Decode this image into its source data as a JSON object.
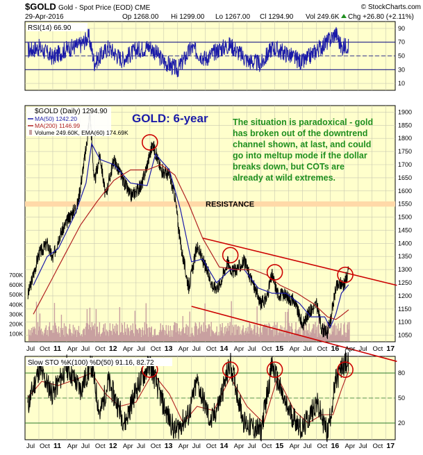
{
  "header": {
    "symbol": "$GOLD",
    "name": "Gold - Spot Price (EOD) CME",
    "source": "© StockCharts.com",
    "date": "29-Apr-2016",
    "op": "Op 1268.00",
    "hi": "Hi 1299.00",
    "lo": "Lo 1267.00",
    "cl": "Cl 1294.90",
    "vol": "Vol 249.6K",
    "chg": "Chg +26.80 (+2.11%)",
    "chg_arrow": "triangle-up-icon"
  },
  "colors": {
    "panel_bg": "#ffffcc",
    "price": "#000000",
    "rsi": "#1a1aa8",
    "ma50": "#1a1aa8",
    "ma200": "#b02020",
    "volume": "#c8a0a0",
    "annotation": "#cc0000",
    "resistance_band": "#ffd9a8",
    "title_text": "#1a1aa8",
    "note_text": "#1f8f1f"
  },
  "x_axis": {
    "labels": [
      {
        "t": 2010.75,
        "text": "Oct",
        "bold": false
      },
      {
        "t": 2011.0,
        "text": "11",
        "bold": true
      },
      {
        "t": 2011.25,
        "text": "Apr",
        "bold": false
      },
      {
        "t": 2011.5,
        "text": "Jul",
        "bold": false
      },
      {
        "t": 2011.75,
        "text": "Oct",
        "bold": false
      },
      {
        "t": 2012.0,
        "text": "12",
        "bold": true
      },
      {
        "t": 2012.25,
        "text": "Apr",
        "bold": false
      },
      {
        "t": 2012.5,
        "text": "Jul",
        "bold": false
      },
      {
        "t": 2012.75,
        "text": "Oct",
        "bold": false
      },
      {
        "t": 2013.0,
        "text": "13",
        "bold": true
      },
      {
        "t": 2013.25,
        "text": "Apr",
        "bold": false
      },
      {
        "t": 2013.5,
        "text": "Jul",
        "bold": false
      },
      {
        "t": 2013.75,
        "text": "Oct",
        "bold": false
      },
      {
        "t": 2014.0,
        "text": "14",
        "bold": true
      },
      {
        "t": 2014.25,
        "text": "Apr",
        "bold": false
      },
      {
        "t": 2014.5,
        "text": "Jul",
        "bold": false
      },
      {
        "t": 2014.75,
        "text": "Oct",
        "bold": false
      },
      {
        "t": 2015.0,
        "text": "15",
        "bold": true
      },
      {
        "t": 2015.25,
        "text": "Apr",
        "bold": false
      },
      {
        "t": 2015.5,
        "text": "Jul",
        "bold": false
      },
      {
        "t": 2015.75,
        "text": "Oct",
        "bold": false
      },
      {
        "t": 2016.0,
        "text": "16",
        "bold": true
      },
      {
        "t": 2016.25,
        "text": "Apr",
        "bold": false
      },
      {
        "t": 2016.5,
        "text": "Jul",
        "bold": false
      },
      {
        "t": 2016.75,
        "text": "Oct",
        "bold": false
      },
      {
        "t": 2017.0,
        "text": "17",
        "bold": true
      }
    ],
    "first_label": "Jul"
  },
  "chart_data": [
    {
      "type": "line",
      "panel": "rsi",
      "legend": "RSI(14) 66.90",
      "ylim": [
        0,
        100
      ],
      "yticks": [
        90,
        70,
        50,
        30,
        10
      ],
      "reference_lines": [
        70,
        30
      ],
      "midline": 50,
      "series": [
        {
          "name": "RSI(14)",
          "x": [
            2010.55,
            2010.75,
            2011.0,
            2011.25,
            2011.5,
            2011.65,
            2011.75,
            2012.0,
            2012.25,
            2012.5,
            2012.75,
            2013.0,
            2013.25,
            2013.5,
            2013.75,
            2014.0,
            2014.2,
            2014.5,
            2014.75,
            2014.95,
            2015.25,
            2015.5,
            2015.75,
            2016.0,
            2016.1,
            2016.2,
            2016.33
          ],
          "y": [
            58,
            62,
            48,
            60,
            66,
            78,
            40,
            62,
            45,
            58,
            64,
            42,
            30,
            62,
            46,
            60,
            66,
            44,
            38,
            62,
            52,
            40,
            58,
            74,
            84,
            62,
            66.9
          ]
        }
      ]
    },
    {
      "type": "line",
      "panel": "price",
      "title": "GOLD: 6-year",
      "legend": [
        "$GOLD (Daily) 1294.90",
        "MA(50) 1242.20",
        "MA(200) 1146.99",
        "Volume 249.60K, EMA(60) 174.69K"
      ],
      "ylim": [
        1025,
        1925
      ],
      "yticks": [
        1900,
        1850,
        1800,
        1750,
        1700,
        1650,
        1600,
        1550,
        1500,
        1450,
        1400,
        1350,
        1300,
        1250,
        1200,
        1150,
        1100,
        1050
      ],
      "volume_ticks": [
        "700K",
        "600K",
        "500K",
        "400K",
        "300K",
        "200K",
        "100K"
      ],
      "series": [
        {
          "name": "$GOLD (Daily)",
          "x": [
            2010.55,
            2010.75,
            2010.9,
            2011.0,
            2011.1,
            2011.3,
            2011.45,
            2011.6,
            2011.67,
            2011.75,
            2011.85,
            2011.95,
            2012.1,
            2012.25,
            2012.4,
            2012.6,
            2012.8,
            2012.95,
            2013.1,
            2013.2,
            2013.3,
            2013.45,
            2013.6,
            2013.75,
            2013.9,
            2014.0,
            2014.15,
            2014.25,
            2014.45,
            2014.6,
            2014.75,
            2014.85,
            2014.95,
            2015.05,
            2015.2,
            2015.35,
            2015.5,
            2015.6,
            2015.75,
            2015.85,
            2015.95,
            2016.0,
            2016.1,
            2016.2,
            2016.25,
            2016.33
          ],
          "y": [
            1200,
            1360,
            1400,
            1340,
            1420,
            1500,
            1550,
            1760,
            1900,
            1630,
            1740,
            1580,
            1720,
            1650,
            1580,
            1620,
            1780,
            1680,
            1660,
            1580,
            1400,
            1230,
            1390,
            1310,
            1230,
            1240,
            1330,
            1290,
            1330,
            1250,
            1170,
            1190,
            1280,
            1210,
            1200,
            1180,
            1090,
            1130,
            1170,
            1070,
            1060,
            1100,
            1230,
            1250,
            1240,
            1294.9
          ]
        },
        {
          "name": "MA(50)",
          "x": [
            2010.65,
            2010.9,
            2011.1,
            2011.4,
            2011.6,
            2011.7,
            2011.85,
            2012.1,
            2012.4,
            2012.7,
            2012.85,
            2013.1,
            2013.3,
            2013.5,
            2013.7,
            2013.95,
            2014.2,
            2014.45,
            2014.7,
            2014.95,
            2015.2,
            2015.45,
            2015.65,
            2015.9,
            2016.0,
            2016.1,
            2016.2,
            2016.33
          ],
          "y": [
            1240,
            1350,
            1380,
            1510,
            1630,
            1780,
            1720,
            1700,
            1630,
            1620,
            1740,
            1680,
            1530,
            1330,
            1340,
            1250,
            1300,
            1300,
            1230,
            1210,
            1210,
            1170,
            1120,
            1120,
            1080,
            1130,
            1210,
            1242.2
          ]
        },
        {
          "name": "MA(200)",
          "x": [
            2010.65,
            2010.9,
            2011.2,
            2011.5,
            2011.8,
            2012.1,
            2012.4,
            2012.7,
            2012.95,
            2013.2,
            2013.45,
            2013.7,
            2014.0,
            2014.3,
            2014.6,
            2014.85,
            2015.1,
            2015.4,
            2015.7,
            2015.95,
            2016.1,
            2016.2,
            2016.33
          ],
          "y": [
            1130,
            1230,
            1350,
            1470,
            1560,
            1640,
            1680,
            1680,
            1700,
            1660,
            1550,
            1420,
            1310,
            1300,
            1300,
            1280,
            1240,
            1210,
            1170,
            1120,
            1110,
            1125,
            1146.99
          ]
        }
      ],
      "annotations": {
        "resistance_label": "RESISTANCE",
        "resistance_zone": [
          1540,
          1560
        ],
        "note": [
          "The situation is paradoxical - gold",
          "has broken out of the downtrend",
          "channel shown, at last, and could",
          "go into meltup mode if the dollar",
          "breaks down, but COTs are",
          "already at wild extremes."
        ],
        "channel_upper": {
          "x": [
            2013.7,
            2017.2
          ],
          "y": [
            1420,
            1240
          ]
        },
        "channel_lower": {
          "x": [
            2013.5,
            2017.2
          ],
          "y": [
            1160,
            950
          ]
        },
        "circles": [
          {
            "x": 2012.75,
            "y": 1785
          },
          {
            "x": 2014.2,
            "y": 1355
          },
          {
            "x": 2015.0,
            "y": 1290
          },
          {
            "x": 2016.27,
            "y": 1280
          }
        ]
      }
    },
    {
      "type": "line",
      "panel": "stochastic",
      "legend": "Slow STO %K(100) %D(50) 91.16, 82.72",
      "ylim": [
        0,
        100
      ],
      "yticks": [
        80,
        50,
        20
      ],
      "reference_lines": [
        80,
        20
      ],
      "midline": 50,
      "series": [
        {
          "name": "%K(100)",
          "x": [
            2010.55,
            2010.75,
            2011.0,
            2011.25,
            2011.5,
            2011.7,
            2011.85,
            2012.0,
            2012.3,
            2012.5,
            2012.75,
            2013.0,
            2013.2,
            2013.45,
            2013.6,
            2013.85,
            2014.0,
            2014.2,
            2014.45,
            2014.75,
            2014.95,
            2015.2,
            2015.5,
            2015.75,
            2015.95,
            2016.1,
            2016.25,
            2016.33
          ],
          "y": [
            40,
            85,
            55,
            88,
            60,
            90,
            30,
            70,
            20,
            60,
            92,
            40,
            10,
            30,
            70,
            20,
            45,
            92,
            20,
            10,
            90,
            40,
            12,
            45,
            8,
            70,
            92,
            91.16
          ]
        },
        {
          "name": "%D(50)",
          "x": [
            2010.55,
            2010.8,
            2011.1,
            2011.4,
            2011.7,
            2011.95,
            2012.2,
            2012.5,
            2012.8,
            2013.1,
            2013.35,
            2013.6,
            2013.9,
            2014.2,
            2014.5,
            2014.8,
            2015.05,
            2015.35,
            2015.6,
            2015.85,
            2016.05,
            2016.2,
            2016.33
          ],
          "y": [
            50,
            70,
            65,
            72,
            80,
            55,
            40,
            45,
            80,
            55,
            20,
            40,
            35,
            75,
            40,
            20,
            75,
            35,
            20,
            30,
            30,
            60,
            82.72
          ]
        }
      ]
    }
  ]
}
